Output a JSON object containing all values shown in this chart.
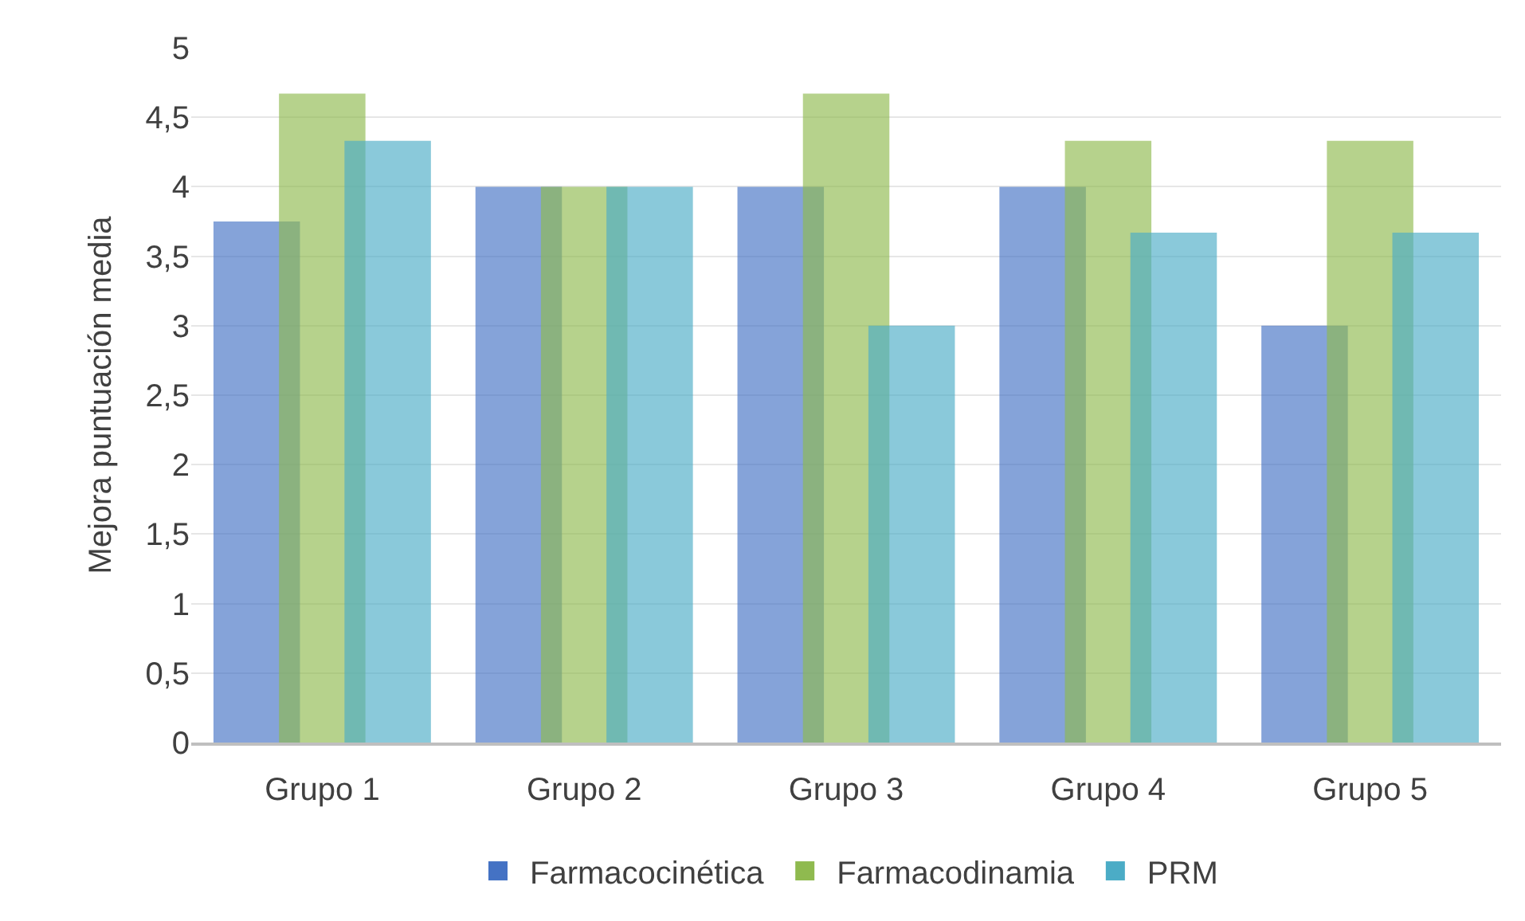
{
  "chart_data": {
    "type": "bar",
    "ylabel": "Mejora puntuación media",
    "categories": [
      "Grupo 1",
      "Grupo 2",
      "Grupo 3",
      "Grupo 4",
      "Grupo 5"
    ],
    "series": [
      {
        "name": "Farmacocinética",
        "color": "#4472c4",
        "values": [
          3.75,
          4,
          4,
          4,
          3
        ]
      },
      {
        "name": "Farmacodinamia",
        "color": "#8fba4f",
        "values": [
          4.67,
          4,
          4.67,
          4.33,
          4.33
        ]
      },
      {
        "name": "PRM",
        "color": "#4bacc6",
        "values": [
          4.33,
          4,
          3,
          3.67,
          3.67
        ]
      }
    ],
    "ylim": [
      0,
      5
    ],
    "yticks": [
      0,
      {
        "value": 0.5,
        "label": "0,5"
      },
      1,
      {
        "value": 1.5,
        "label": "1,5"
      },
      2,
      {
        "value": 2.5,
        "label": "2,5"
      },
      3,
      {
        "value": 3.5,
        "label": "3,5"
      },
      4,
      {
        "value": 4.5,
        "label": "4,5"
      },
      5
    ],
    "grid": "y",
    "legend": "bottom"
  }
}
